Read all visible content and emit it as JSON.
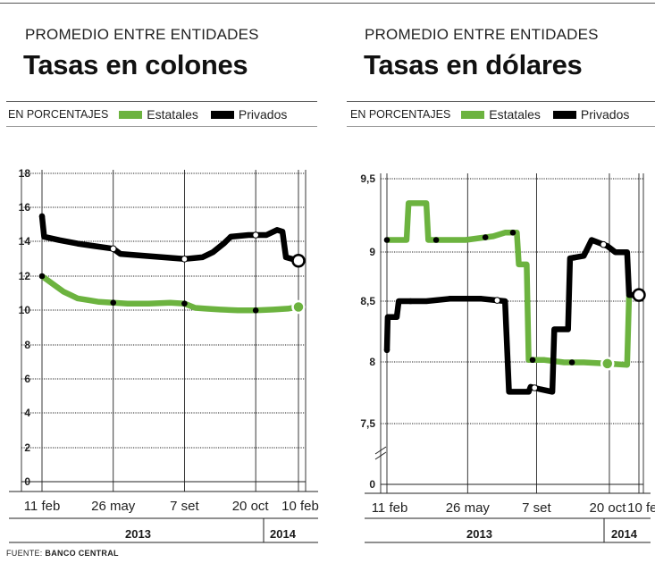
{
  "left": {
    "supertitle": "PROMEDIO ENTRE ENTIDADES",
    "title": "Tasas en colones",
    "units": "EN PORCENTAJES",
    "legend": [
      {
        "name": "Estatales",
        "color": "#6cb33f"
      },
      {
        "name": "Privados",
        "color": "#000000"
      }
    ],
    "years": [
      "2013",
      "2014"
    ]
  },
  "right": {
    "supertitle": "PROMEDIO ENTRE ENTIDADES",
    "title": "Tasas en dólares",
    "units": "EN PORCENTAJES",
    "legend": [
      {
        "name": "Estatales",
        "color": "#6cb33f"
      },
      {
        "name": "Privados",
        "color": "#000000"
      }
    ],
    "years": [
      "2013",
      "2014"
    ]
  },
  "source": {
    "label": "FUENTE:",
    "value": "BANCO CENTRAL"
  },
  "chart_data": [
    {
      "type": "line",
      "title": "Tasas en colones",
      "ylabel": "EN PORCENTAJES",
      "y_ticks": [
        "18",
        "16",
        "14",
        "12",
        "10",
        "8",
        "6",
        "4",
        "2",
        "0"
      ],
      "ylim": [
        0,
        18
      ],
      "x_ticks": [
        "11 feb",
        "26 may",
        "7 set",
        "20 oct",
        "10 feb"
      ],
      "grid": true,
      "legend_position": "top",
      "series": [
        {
          "name": "Estatales",
          "color": "#6cb33f",
          "points": [
            [
              0,
              12.0
            ],
            [
              0.2,
              11.7
            ],
            [
              0.4,
              11.4
            ],
            [
              0.6,
              11.1
            ],
            [
              0.8,
              10.9
            ],
            [
              1.0,
              10.7
            ],
            [
              1.3,
              10.6
            ],
            [
              1.6,
              10.5
            ],
            [
              2.0,
              10.45
            ],
            [
              2.4,
              10.4
            ],
            [
              3.0,
              10.4
            ],
            [
              3.6,
              10.45
            ],
            [
              4.0,
              10.4
            ],
            [
              4.3,
              10.15
            ],
            [
              4.6,
              10.1
            ],
            [
              5.0,
              10.05
            ],
            [
              5.5,
              10.0
            ],
            [
              6.0,
              10.0
            ],
            [
              6.5,
              10.05
            ],
            [
              6.9,
              10.1
            ],
            [
              7.2,
              10.2
            ]
          ],
          "markers": [
            0,
            2.0,
            4.0,
            6.0,
            7.2
          ]
        },
        {
          "name": "Privados",
          "color": "#000000",
          "points": [
            [
              0,
              15.5
            ],
            [
              0.06,
              14.3
            ],
            [
              0.5,
              14.1
            ],
            [
              1.0,
              13.9
            ],
            [
              1.5,
              13.75
            ],
            [
              2.0,
              13.6
            ],
            [
              2.2,
              13.3
            ],
            [
              2.8,
              13.2
            ],
            [
              3.4,
              13.1
            ],
            [
              4.0,
              13.0
            ],
            [
              4.5,
              13.1
            ],
            [
              4.8,
              13.4
            ],
            [
              5.1,
              13.9
            ],
            [
              5.3,
              14.3
            ],
            [
              5.8,
              14.4
            ],
            [
              6.3,
              14.4
            ],
            [
              6.6,
              14.7
            ],
            [
              6.75,
              14.6
            ],
            [
              6.85,
              13.1
            ],
            [
              7.2,
              12.9
            ]
          ],
          "markers": [
            0,
            2.0,
            4.0,
            6.0,
            7.2
          ]
        }
      ]
    },
    {
      "type": "line",
      "title": "Tasas en dólares",
      "ylabel": "EN PORCENTAJES",
      "y_ticks": [
        "9,5",
        "9",
        "8,5",
        "8",
        "7,5",
        "0"
      ],
      "ylim": [
        7.5,
        9.5
      ],
      "axis_break": true,
      "x_ticks": [
        "11 feb",
        "26 may",
        "7 set",
        "20 oct",
        "10 feb"
      ],
      "grid": true,
      "legend_position": "top",
      "series": [
        {
          "name": "Estatales",
          "color": "#6cb33f",
          "points": [
            [
              0,
              9.0
            ],
            [
              0.5,
              9.0
            ],
            [
              0.55,
              9.3
            ],
            [
              1.0,
              9.3
            ],
            [
              1.05,
              9.0
            ],
            [
              2.0,
              9.0
            ],
            [
              2.7,
              9.03
            ],
            [
              3.0,
              9.06
            ],
            [
              3.3,
              9.06
            ],
            [
              3.35,
              8.8
            ],
            [
              3.55,
              8.8
            ],
            [
              3.6,
              8.02
            ],
            [
              4.0,
              8.02
            ],
            [
              4.5,
              8.0
            ],
            [
              5.0,
              8.0
            ],
            [
              5.6,
              7.99
            ],
            [
              6.1,
              7.98
            ],
            [
              6.15,
              8.55
            ]
          ],
          "markers": [
            0,
            1.25,
            2.5,
            3.2,
            3.7,
            4.7,
            5.6
          ]
        },
        {
          "name": "Privados",
          "color": "#000000",
          "points": [
            [
              0,
              8.1
            ],
            [
              0.02,
              8.37
            ],
            [
              0.25,
              8.37
            ],
            [
              0.3,
              8.5
            ],
            [
              1.0,
              8.5
            ],
            [
              1.6,
              8.52
            ],
            [
              2.4,
              8.52
            ],
            [
              3.0,
              8.5
            ],
            [
              3.1,
              7.76
            ],
            [
              3.6,
              7.76
            ],
            [
              3.65,
              7.8
            ],
            [
              3.9,
              7.78
            ],
            [
              4.2,
              7.76
            ],
            [
              4.25,
              8.27
            ],
            [
              4.6,
              8.27
            ],
            [
              4.65,
              8.85
            ],
            [
              5.0,
              8.87
            ],
            [
              5.2,
              9.0
            ],
            [
              5.6,
              8.95
            ],
            [
              5.8,
              8.9
            ],
            [
              6.1,
              8.9
            ],
            [
              6.15,
              8.55
            ],
            [
              6.4,
              8.55
            ]
          ],
          "markers": [
            0,
            0.6,
            1.6,
            2.8,
            3.75,
            4.75,
            5.5,
            6.4
          ]
        }
      ]
    }
  ]
}
